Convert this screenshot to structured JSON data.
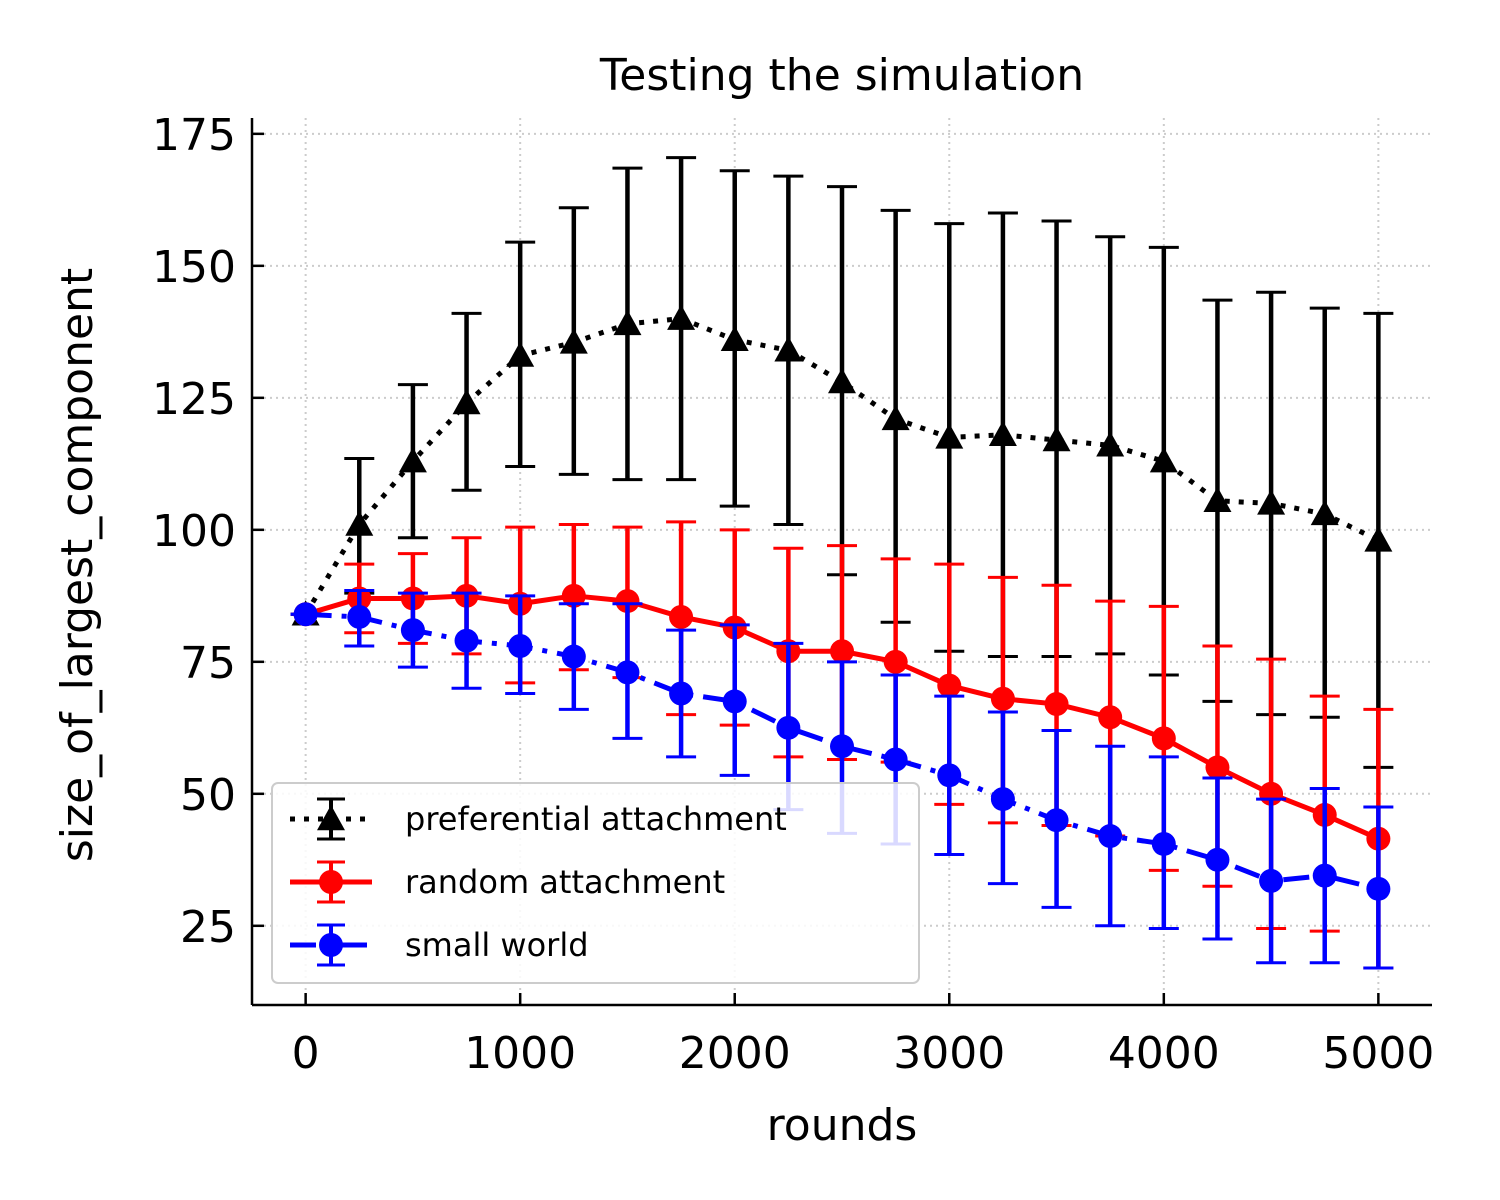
{
  "chart_data": {
    "type": "line",
    "title": "Testing the simulation",
    "xlabel": "rounds",
    "ylabel": "size_of_largest_component",
    "xlim": [
      -250,
      5250
    ],
    "ylim": [
      10,
      178
    ],
    "x_ticks": [
      0,
      1000,
      2000,
      3000,
      4000,
      5000
    ],
    "x_tick_labels": [
      "0",
      "1000",
      "2000",
      "3000",
      "4000",
      "5000"
    ],
    "y_ticks": [
      25,
      50,
      75,
      100,
      125,
      150,
      175
    ],
    "y_tick_labels": [
      "25",
      "50",
      "75",
      "100",
      "125",
      "150",
      "175"
    ],
    "grid": true,
    "legend_position": "lower-left",
    "x": [
      0,
      250,
      500,
      750,
      1000,
      1250,
      1500,
      1750,
      2000,
      2250,
      2500,
      2750,
      3000,
      3250,
      3500,
      3750,
      4000,
      4250,
      4500,
      4750,
      5000
    ],
    "series": [
      {
        "name": "preferential attachment",
        "color": "#000000",
        "line_style": "dotted",
        "marker": "triangle",
        "values": [
          84,
          101,
          113,
          124,
          133,
          135.5,
          139,
          140,
          136,
          134,
          128,
          121,
          117.5,
          118,
          117,
          116,
          113,
          105.5,
          105,
          103,
          98
        ],
        "err_low": [
          84,
          88,
          98.5,
          107.5,
          112,
          110.5,
          109.5,
          109.5,
          104.5,
          101,
          91.5,
          82.5,
          77,
          76,
          76,
          76.5,
          72.5,
          67.5,
          65,
          64.5,
          55
        ],
        "err_high": [
          84,
          113.5,
          127.5,
          141,
          154.5,
          161,
          168.5,
          170.5,
          168,
          167,
          165,
          160.5,
          158,
          160,
          158.5,
          155.5,
          153.5,
          143.5,
          145,
          142,
          141
        ]
      },
      {
        "name": "random attachment",
        "color": "#ff0000",
        "line_style": "solid",
        "marker": "circle",
        "values": [
          84,
          87,
          87,
          87.5,
          86,
          87.5,
          86.5,
          83.5,
          81.5,
          77,
          77,
          75,
          70.5,
          68,
          67,
          64.5,
          60.5,
          55,
          50,
          46,
          41.5
        ],
        "err_low": [
          84,
          80.5,
          78.5,
          76.5,
          71,
          73.5,
          72,
          65,
          63,
          57,
          56.5,
          56,
          48,
          44.5,
          44,
          42,
          35.5,
          32.5,
          24.5,
          24,
          17
        ],
        "err_high": [
          84,
          93.5,
          95.5,
          98.5,
          100.5,
          101,
          100.5,
          101.5,
          100,
          96.5,
          97,
          94.5,
          93.5,
          91,
          89.5,
          86.5,
          85.5,
          78,
          75.5,
          68.5,
          66
        ]
      },
      {
        "name": "small world",
        "color": "#0000ff",
        "line_style": "dashdot",
        "marker": "circle",
        "values": [
          84,
          83.5,
          81,
          79,
          78,
          76,
          73,
          69,
          67.5,
          62.5,
          59,
          56.5,
          53.5,
          49,
          45,
          42,
          40.5,
          37.5,
          33.5,
          34.5,
          32
        ],
        "err_low": [
          84,
          78,
          74,
          70,
          69,
          66,
          60.5,
          57,
          53.5,
          47,
          42.5,
          40.5,
          38.5,
          33,
          28.5,
          25,
          24.5,
          22.5,
          18,
          18,
          17
        ],
        "err_high": [
          84,
          88.5,
          88,
          88,
          87.5,
          86,
          86,
          81,
          82,
          78.5,
          75,
          72.5,
          68.5,
          65.5,
          62,
          59,
          57,
          53,
          49,
          51,
          47.5
        ]
      }
    ]
  }
}
